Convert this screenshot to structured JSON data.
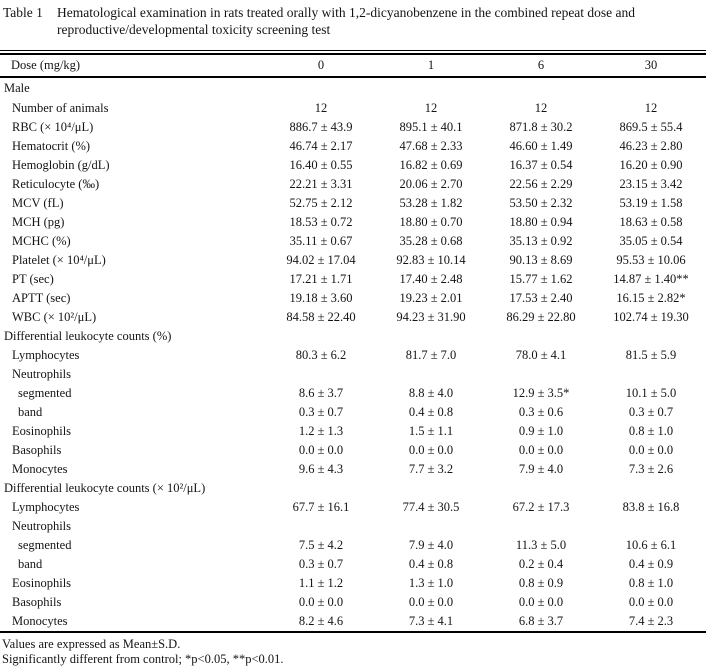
{
  "title": {
    "label": "Table 1",
    "text": "Hematological examination in rats treated orally with 1,2-dicyanobenzene in the combined repeat dose and reproductive/developmental toxicity screening test"
  },
  "table": {
    "header": {
      "label": "Dose (mg/kg)",
      "columns": [
        "0",
        "1",
        "6",
        "30"
      ]
    },
    "rows": [
      {
        "label": "Male",
        "indent": 0,
        "values": [
          "",
          "",
          "",
          ""
        ]
      },
      {
        "label": "Number of animals",
        "indent": 1,
        "values": [
          "12",
          "12",
          "12",
          "12"
        ]
      },
      {
        "label": "RBC (× 10⁴/μL)",
        "indent": 1,
        "values": [
          "886.7 ± 43.9",
          "895.1 ± 40.1",
          "871.8 ± 30.2",
          "869.5 ± 55.4"
        ]
      },
      {
        "label": "Hematocrit (%)",
        "indent": 1,
        "values": [
          "46.74 ± 2.17",
          "47.68 ± 2.33",
          "46.60 ± 1.49",
          "46.23 ± 2.80"
        ]
      },
      {
        "label": "Hemoglobin (g/dL)",
        "indent": 1,
        "values": [
          "16.40 ± 0.55",
          "16.82 ± 0.69",
          "16.37 ± 0.54",
          "16.20 ± 0.90"
        ]
      },
      {
        "label": "Reticulocyte (‰)",
        "indent": 1,
        "values": [
          "22.21 ± 3.31",
          "20.06 ± 2.70",
          "22.56 ± 2.29",
          "23.15 ± 3.42"
        ]
      },
      {
        "label": "MCV (fL)",
        "indent": 1,
        "values": [
          "52.75 ± 2.12",
          "53.28 ± 1.82",
          "53.50 ± 2.32",
          "53.19 ± 1.58"
        ]
      },
      {
        "label": "MCH (pg)",
        "indent": 1,
        "values": [
          "18.53 ± 0.72",
          "18.80 ± 0.70",
          "18.80 ± 0.94",
          "18.63 ± 0.58"
        ]
      },
      {
        "label": "MCHC (%)",
        "indent": 1,
        "values": [
          "35.11 ± 0.67",
          "35.28 ± 0.68",
          "35.13 ± 0.92",
          "35.05 ± 0.54"
        ]
      },
      {
        "label": "Platelet (× 10⁴/μL)",
        "indent": 1,
        "values": [
          "94.02 ± 17.04",
          "92.83 ± 10.14",
          "90.13 ± 8.69",
          "95.53 ± 10.06"
        ]
      },
      {
        "label": "PT (sec)",
        "indent": 1,
        "values": [
          "17.21 ± 1.71",
          "17.40 ± 2.48",
          "15.77 ± 1.62",
          "14.87 ± 1.40**"
        ]
      },
      {
        "label": "APTT (sec)",
        "indent": 1,
        "values": [
          "19.18 ± 3.60",
          "19.23 ± 2.01",
          "17.53 ± 2.40",
          "16.15 ± 2.82*"
        ]
      },
      {
        "label": "WBC (× 10²/μL)",
        "indent": 1,
        "values": [
          "84.58 ± 22.40",
          "94.23 ± 31.90",
          "86.29 ± 22.80",
          "102.74 ± 19.30"
        ]
      },
      {
        "label": "Differential leukocyte counts (%)",
        "indent": 0,
        "values": [
          "",
          "",
          "",
          ""
        ]
      },
      {
        "label": "Lymphocytes",
        "indent": 1,
        "values": [
          "80.3 ± 6.2",
          "81.7 ± 7.0",
          "78.0 ± 4.1",
          "81.5 ± 5.9"
        ]
      },
      {
        "label": "Neutrophils",
        "indent": 1,
        "values": [
          "",
          "",
          "",
          ""
        ]
      },
      {
        "label": "segmented",
        "indent": 2,
        "values": [
          "8.6 ± 3.7",
          "8.8 ± 4.0",
          "12.9 ± 3.5*",
          "10.1 ± 5.0"
        ]
      },
      {
        "label": "band",
        "indent": 2,
        "values": [
          "0.3 ± 0.7",
          "0.4 ± 0.8",
          "0.3 ± 0.6",
          "0.3 ± 0.7"
        ]
      },
      {
        "label": "Eosinophils",
        "indent": 1,
        "values": [
          "1.2 ± 1.3",
          "1.5 ± 1.1",
          "0.9 ± 1.0",
          "0.8 ± 1.0"
        ]
      },
      {
        "label": "Basophils",
        "indent": 1,
        "values": [
          "0.0 ± 0.0",
          "0.0 ± 0.0",
          "0.0 ± 0.0",
          "0.0 ± 0.0"
        ]
      },
      {
        "label": "Monocytes",
        "indent": 1,
        "values": [
          "9.6 ± 4.3",
          "7.7 ± 3.2",
          "7.9 ± 4.0",
          "7.3 ± 2.6"
        ]
      },
      {
        "label": "Differential leukocyte counts (× 10²/μL)",
        "indent": 0,
        "values": [
          "",
          "",
          "",
          ""
        ]
      },
      {
        "label": "Lymphocytes",
        "indent": 1,
        "values": [
          "67.7 ± 16.1",
          "77.4 ± 30.5",
          "67.2 ± 17.3",
          "83.8 ± 16.8"
        ]
      },
      {
        "label": "Neutrophils",
        "indent": 1,
        "values": [
          "",
          "",
          "",
          ""
        ]
      },
      {
        "label": "segmented",
        "indent": 2,
        "values": [
          "7.5 ± 4.2",
          "7.9 ± 4.0",
          "11.3 ± 5.0",
          "10.6 ± 6.1"
        ]
      },
      {
        "label": "band",
        "indent": 2,
        "values": [
          "0.3 ± 0.7",
          "0.4 ± 0.8",
          "0.2 ± 0.4",
          "0.4 ± 0.9"
        ]
      },
      {
        "label": "Eosinophils",
        "indent": 1,
        "values": [
          "1.1 ± 1.2",
          "1.3 ± 1.0",
          "0.8 ± 0.9",
          "0.8 ± 1.0"
        ]
      },
      {
        "label": "Basophils",
        "indent": 1,
        "values": [
          "0.0 ± 0.0",
          "0.0 ± 0.0",
          "0.0 ± 0.0",
          "0.0 ± 0.0"
        ]
      },
      {
        "label": "Monocytes",
        "indent": 1,
        "values": [
          "8.2 ± 4.6",
          "7.3 ± 4.1",
          "6.8 ± 3.7",
          "7.4 ± 2.3"
        ]
      }
    ]
  },
  "footnotes": [
    "Values are expressed as Mean±S.D.",
    "Significantly different from control; *p<0.05, **p<0.01."
  ]
}
